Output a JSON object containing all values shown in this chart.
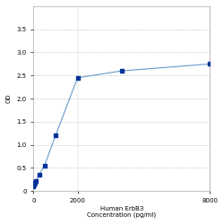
{
  "x": [
    0,
    31.25,
    62.5,
    125,
    250,
    500,
    1000,
    2000,
    4000,
    8000
  ],
  "y": [
    0.1,
    0.13,
    0.17,
    0.22,
    0.35,
    0.55,
    1.2,
    2.45,
    2.6,
    2.75
  ],
  "xlim": [
    0,
    8000
  ],
  "ylim": [
    0,
    4.0
  ],
  "yticks": [
    0,
    0.5,
    1.0,
    1.5,
    2.0,
    2.5,
    3.0,
    3.5
  ],
  "xticks": [
    0,
    2000,
    8000
  ],
  "xlabel_line1": "Human ErbB3",
  "xlabel_line2": "Concentration (pg/ml)",
  "ylabel": "OD",
  "line_color": "#6699cc",
  "marker_color": "#003399",
  "grid_color": "#cccccc",
  "bg_color": "#ffffff",
  "font_size_label": 5,
  "font_size_tick": 5
}
